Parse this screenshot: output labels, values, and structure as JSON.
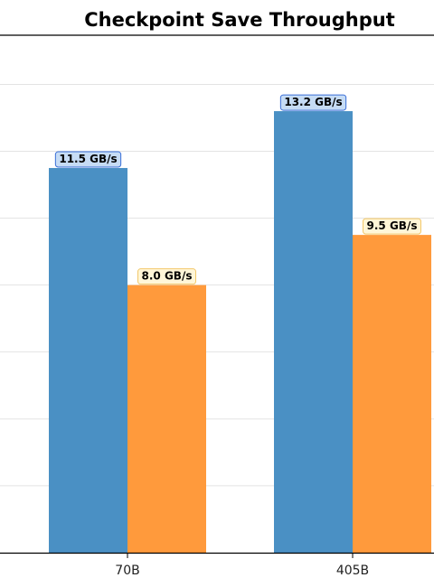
{
  "chart_data": {
    "type": "bar",
    "title": "Checkpoint Save Throughput",
    "xlabel": "",
    "ylabel": "",
    "categories": [
      "70B",
      "405B"
    ],
    "series": [
      {
        "values": [
          11.5,
          13.2
        ],
        "labels": [
          "11.5 GB/s",
          "13.2 GB/s"
        ],
        "color": "#4a90c4",
        "label_bg": "#c6dcf5",
        "label_border": "#3b6fd8"
      },
      {
        "values": [
          8.0,
          9.5
        ],
        "labels": [
          "8.0 GB/s",
          "9.5 GB/s"
        ],
        "color": "#ff9a3c",
        "label_bg": "#fff6d8",
        "label_border": "#f2c86a"
      }
    ],
    "ylim": [
      0,
      16
    ],
    "grid": true,
    "legend": "none"
  }
}
